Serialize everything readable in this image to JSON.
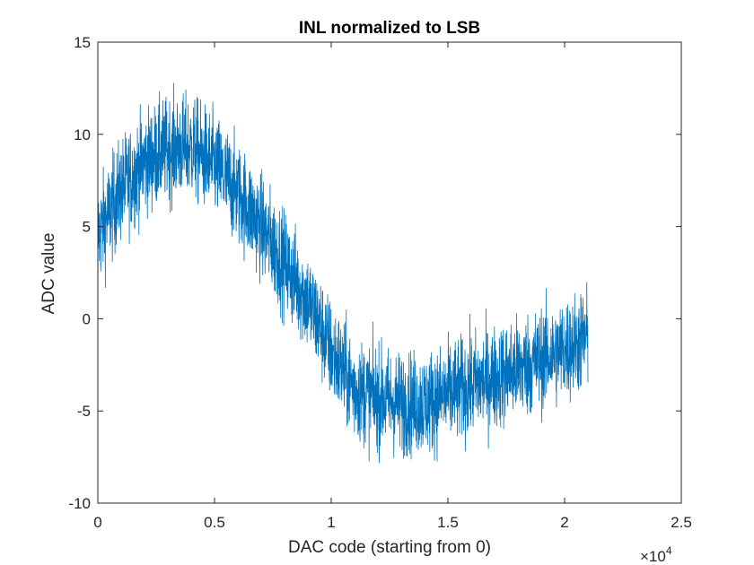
{
  "chart_data": {
    "type": "line",
    "title": "INL normalized to LSB",
    "xlabel": "DAC code (starting from 0)",
    "ylabel": "ADC value",
    "x_multiplier_base": "×10",
    "x_multiplier_exp": "4",
    "xlim": [
      0,
      25000
    ],
    "ylim": [
      -10,
      15
    ],
    "x_ticks": [
      0,
      5000,
      10000,
      15000,
      20000,
      25000
    ],
    "x_tick_labels": [
      "0",
      "0.5",
      "1",
      "1.5",
      "2",
      "2.5"
    ],
    "y_ticks": [
      -10,
      -5,
      0,
      5,
      10,
      15
    ],
    "y_tick_labels": [
      "-10",
      "-5",
      "0",
      "5",
      "10",
      "15"
    ],
    "grid": false,
    "series": [
      {
        "color": "#0072BD",
        "x_start": 0,
        "x_end": 21000,
        "trend": {
          "x": [
            0,
            1000,
            2000,
            3000,
            4000,
            5000,
            6000,
            7000,
            8000,
            9000,
            10000,
            11000,
            12000,
            13000,
            14000,
            15000,
            16000,
            17000,
            18000,
            19000,
            20000,
            21000
          ],
          "y": [
            4.5,
            7.0,
            8.5,
            9.2,
            9.3,
            8.3,
            6.8,
            5.0,
            3.0,
            1.0,
            -1.8,
            -3.8,
            -4.3,
            -4.6,
            -4.6,
            -4.1,
            -3.6,
            -3.2,
            -2.7,
            -2.2,
            -1.7,
            -1.0
          ]
        },
        "band_half_width": 2.5,
        "peak_max": 12.8,
        "peak_min": -9.0
      }
    ]
  }
}
